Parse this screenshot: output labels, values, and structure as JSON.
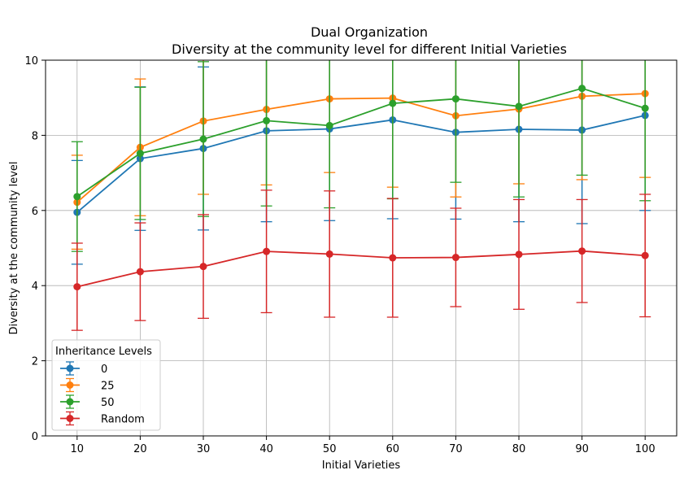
{
  "chart_data": {
    "type": "line",
    "title": "Dual Organization",
    "subtitle": "Diversity at the community level for different Initial Varieties",
    "xlabel": "Initial Varieties",
    "ylabel": "Diversity at the community level",
    "x": [
      10,
      20,
      30,
      40,
      50,
      60,
      70,
      80,
      90,
      100
    ],
    "xticks": [
      "10",
      "20",
      "30",
      "40",
      "50",
      "60",
      "70",
      "80",
      "90",
      "100"
    ],
    "xlim": [
      5,
      105
    ],
    "ylim": [
      0,
      10
    ],
    "yticks": [
      "0",
      "2",
      "4",
      "6",
      "8",
      "10"
    ],
    "grid": true,
    "legend": {
      "title": "Inheritance Levels",
      "position": "lower-left"
    },
    "series": [
      {
        "name": "0",
        "color": "#1f77b4",
        "values": [
          5.95,
          7.38,
          7.65,
          8.12,
          8.17,
          8.41,
          8.08,
          8.16,
          8.14,
          8.53
        ],
        "err": [
          1.38,
          1.91,
          2.17,
          2.42,
          2.44,
          2.63,
          2.31,
          2.46,
          2.49,
          2.53
        ]
      },
      {
        "name": "25",
        "color": "#ff7f0e",
        "values": [
          6.22,
          7.68,
          8.38,
          8.69,
          8.97,
          8.99,
          8.52,
          8.7,
          9.04,
          9.11
        ],
        "err": [
          1.25,
          1.82,
          1.95,
          2.01,
          1.96,
          2.37,
          2.16,
          1.99,
          2.22,
          2.23
        ]
      },
      {
        "name": "50",
        "color": "#2ca02c",
        "values": [
          6.37,
          7.52,
          7.9,
          8.39,
          8.26,
          8.85,
          8.97,
          8.77,
          9.25,
          8.72
        ],
        "err": [
          1.46,
          1.76,
          2.06,
          2.27,
          2.19,
          2.54,
          2.22,
          2.41,
          2.31,
          2.46
        ]
      },
      {
        "name": "Random",
        "color": "#d62728",
        "values": [
          3.97,
          4.37,
          4.51,
          4.91,
          4.84,
          4.74,
          4.75,
          4.83,
          4.92,
          4.8
        ],
        "err": [
          1.16,
          1.3,
          1.38,
          1.63,
          1.68,
          1.58,
          1.31,
          1.46,
          1.37,
          1.63
        ]
      }
    ]
  }
}
